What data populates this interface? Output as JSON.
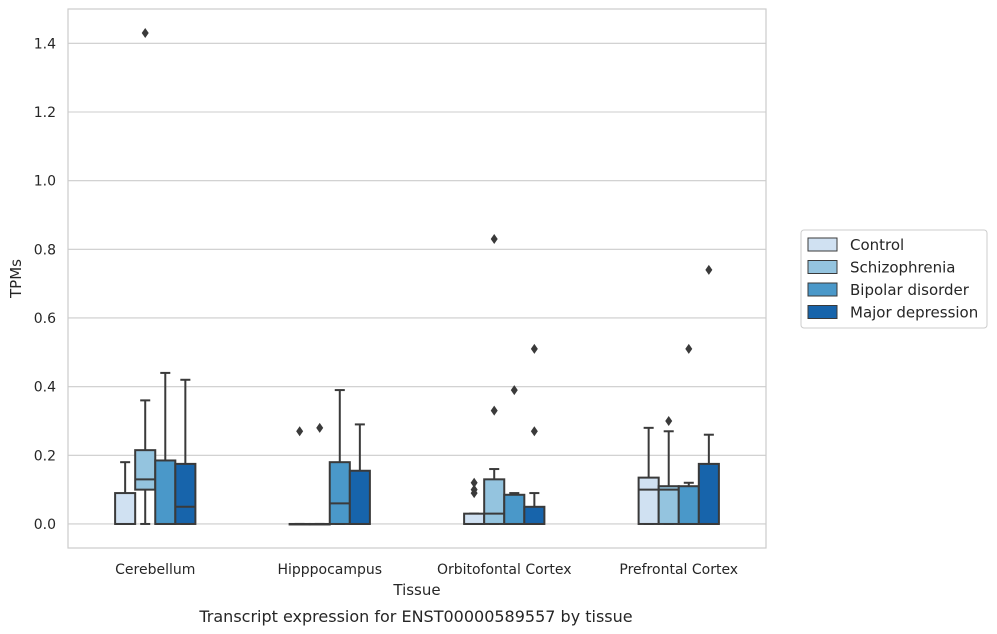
{
  "caption": "Transcript expression for ENST00000589557 by tissue",
  "chart_data": {
    "type": "box",
    "xlabel": "Tissue",
    "ylabel": "TPMs",
    "ylim": [
      -0.07,
      1.5
    ],
    "yticks": [
      0.0,
      0.2,
      0.4,
      0.6,
      0.8,
      1.0,
      1.2,
      1.4
    ],
    "ytick_labels": [
      "0.0",
      "0.2",
      "0.4",
      "0.6",
      "0.8",
      "1.0",
      "1.2",
      "1.4"
    ],
    "grid": "horizontal",
    "legend_position": "right",
    "categories": [
      "Cerebellum",
      "Hipppocampus",
      "Orbitofontal Cortex",
      "Prefrontal Cortex"
    ],
    "series": [
      {
        "name": "Control",
        "color": "#d0e1f2",
        "boxes": [
          {
            "q1": 0.0,
            "median": 0.0,
            "q3": 0.09,
            "whisker_low": 0.0,
            "whisker_high": 0.18,
            "outliers": []
          },
          {
            "q1": 0.0,
            "median": 0.0,
            "q3": 0.0,
            "whisker_low": 0.0,
            "whisker_high": 0.0,
            "outliers": [
              0.27
            ]
          },
          {
            "q1": 0.0,
            "median": 0.0,
            "q3": 0.03,
            "whisker_low": 0.0,
            "whisker_high": 0.03,
            "outliers": [
              0.09,
              0.1,
              0.12
            ]
          },
          {
            "q1": 0.0,
            "median": 0.1,
            "q3": 0.135,
            "whisker_low": 0.0,
            "whisker_high": 0.28,
            "outliers": []
          }
        ]
      },
      {
        "name": "Schizophrenia",
        "color": "#94c4df",
        "boxes": [
          {
            "q1": 0.1,
            "median": 0.13,
            "q3": 0.215,
            "whisker_low": 0.0,
            "whisker_high": 0.36,
            "outliers": [
              1.43
            ]
          },
          {
            "q1": 0.0,
            "median": 0.0,
            "q3": 0.0,
            "whisker_low": 0.0,
            "whisker_high": 0.0,
            "outliers": [
              0.28
            ]
          },
          {
            "q1": 0.0,
            "median": 0.03,
            "q3": 0.13,
            "whisker_low": 0.0,
            "whisker_high": 0.16,
            "outliers": [
              0.33,
              0.83
            ]
          },
          {
            "q1": 0.0,
            "median": 0.1,
            "q3": 0.11,
            "whisker_low": 0.0,
            "whisker_high": 0.27,
            "outliers": [
              0.3
            ]
          }
        ]
      },
      {
        "name": "Bipolar disorder",
        "color": "#4a98c9",
        "boxes": [
          {
            "q1": 0.0,
            "median": 0.0,
            "q3": 0.185,
            "whisker_low": 0.0,
            "whisker_high": 0.44,
            "outliers": []
          },
          {
            "q1": 0.0,
            "median": 0.06,
            "q3": 0.18,
            "whisker_low": 0.0,
            "whisker_high": 0.39,
            "outliers": []
          },
          {
            "q1": 0.0,
            "median": 0.0,
            "q3": 0.085,
            "whisker_low": 0.0,
            "whisker_high": 0.09,
            "outliers": [
              0.39
            ]
          },
          {
            "q1": 0.0,
            "median": 0.0,
            "q3": 0.11,
            "whisker_low": 0.0,
            "whisker_high": 0.12,
            "outliers": [
              0.51
            ]
          }
        ]
      },
      {
        "name": "Major depression",
        "color": "#1764ab",
        "boxes": [
          {
            "q1": 0.0,
            "median": 0.05,
            "q3": 0.175,
            "whisker_low": 0.0,
            "whisker_high": 0.42,
            "outliers": []
          },
          {
            "q1": 0.0,
            "median": 0.0,
            "q3": 0.155,
            "whisker_low": 0.0,
            "whisker_high": 0.29,
            "outliers": []
          },
          {
            "q1": 0.0,
            "median": 0.0,
            "q3": 0.05,
            "whisker_low": 0.0,
            "whisker_high": 0.09,
            "outliers": [
              0.27,
              0.51
            ]
          },
          {
            "q1": 0.0,
            "median": 0.0,
            "q3": 0.175,
            "whisker_low": 0.0,
            "whisker_high": 0.26,
            "outliers": [
              0.74
            ]
          }
        ]
      }
    ]
  }
}
